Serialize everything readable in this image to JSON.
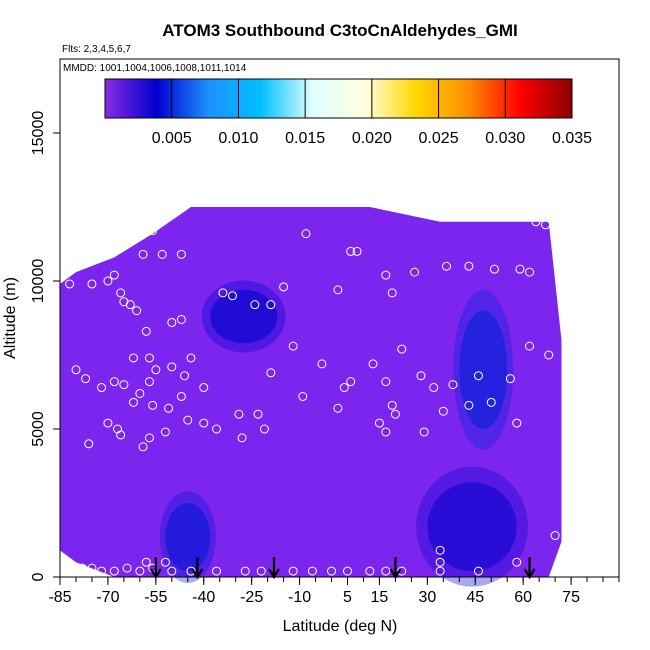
{
  "chart_data": {
    "type": "heatmap",
    "title": "ATOM3 Southbound C3toCnAldehydes_GMI",
    "annotations": [
      "Flts: 2,3,4,5,6,7",
      "MMDD: 1001,1004,1006,1008,1011,1014"
    ],
    "xlabel": "Latitude (deg N)",
    "ylabel": "Altitude (m)",
    "xlim": [
      -85,
      90
    ],
    "ylim": [
      0,
      17500
    ],
    "x_ticks": [
      -85,
      -70,
      -55,
      -40,
      -25,
      -10,
      5,
      15,
      30,
      45,
      60,
      75
    ],
    "y_ticks": [
      0,
      5000,
      10000,
      15000
    ],
    "colorbar": {
      "range": [
        0,
        0.035
      ],
      "ticks": [
        "0.005",
        "0.010",
        "0.015",
        "0.020",
        "0.025",
        "0.030",
        "0.035"
      ],
      "colors": [
        "#8a2be2",
        "#0000cd",
        "#1e90ff",
        "#00bfff",
        "#e0ffff",
        "#ffffe0",
        "#ffd700",
        "#ff8c00",
        "#ff0000",
        "#8b0000"
      ]
    },
    "field": {
      "background_color": "#7b25ef",
      "extent": {
        "columns": [
          {
            "lat": -85,
            "alt_min": 900,
            "alt_max": 9900
          },
          {
            "lat": -80,
            "alt_min": 500,
            "alt_max": 10300
          },
          {
            "lat": -68,
            "alt_min": 0,
            "alt_max": 10800
          },
          {
            "lat": -56,
            "alt_min": 0,
            "alt_max": 11600
          },
          {
            "lat": -44,
            "alt_min": 0,
            "alt_max": 12500
          },
          {
            "lat": 12,
            "alt_min": 0,
            "alt_max": 12500
          },
          {
            "lat": 34,
            "alt_min": 0,
            "alt_max": 12000
          },
          {
            "lat": 68,
            "alt_min": 0,
            "alt_max": 12000
          },
          {
            "lat": 72,
            "alt_min": 1200,
            "alt_max": 8000
          }
        ]
      },
      "low_regions": [
        {
          "lat_range": [
            -38,
            -17
          ],
          "alt_range": [
            7900,
            9700
          ],
          "value": 0.004
        },
        {
          "lat_range": [
            30,
            58
          ],
          "alt_range": [
            200,
            3200
          ],
          "value": 0.0035
        },
        {
          "lat_range": [
            -52,
            -38
          ],
          "alt_range": [
            200,
            2500
          ],
          "value": 0.0045
        },
        {
          "lat_range": [
            40,
            55
          ],
          "alt_range": [
            5000,
            9000
          ],
          "value": 0.0048
        }
      ]
    },
    "samples": [
      {
        "lat": -82,
        "alt": 9900
      },
      {
        "lat": -75,
        "alt": 9900
      },
      {
        "lat": -70,
        "alt": 10000
      },
      {
        "lat": -68,
        "alt": 10200
      },
      {
        "lat": -66,
        "alt": 9600
      },
      {
        "lat": -63,
        "alt": 9200
      },
      {
        "lat": -61,
        "alt": 9000
      },
      {
        "lat": -65,
        "alt": 9300
      },
      {
        "lat": -59,
        "alt": 10900
      },
      {
        "lat": -56,
        "alt": 11700
      },
      {
        "lat": -50,
        "alt": 12300
      },
      {
        "lat": -53,
        "alt": 10900
      },
      {
        "lat": -47,
        "alt": 10900
      },
      {
        "lat": -50,
        "alt": 8600
      },
      {
        "lat": -47,
        "alt": 8700
      },
      {
        "lat": -58,
        "alt": 8300
      },
      {
        "lat": -62,
        "alt": 7400
      },
      {
        "lat": -57,
        "alt": 7400
      },
      {
        "lat": -55,
        "alt": 7000
      },
      {
        "lat": -50,
        "alt": 7100
      },
      {
        "lat": -44,
        "alt": 7400
      },
      {
        "lat": -46,
        "alt": 6800
      },
      {
        "lat": -60,
        "alt": 6200
      },
      {
        "lat": -57,
        "alt": 6600
      },
      {
        "lat": -65,
        "alt": 6500
      },
      {
        "lat": -68,
        "alt": 6600
      },
      {
        "lat": -72,
        "alt": 6400
      },
      {
        "lat": -77,
        "alt": 6700
      },
      {
        "lat": -80,
        "alt": 7000
      },
      {
        "lat": -62,
        "alt": 5900
      },
      {
        "lat": -56,
        "alt": 5800
      },
      {
        "lat": -51,
        "alt": 5700
      },
      {
        "lat": -47,
        "alt": 6100
      },
      {
        "lat": -40,
        "alt": 6400
      },
      {
        "lat": -45,
        "alt": 5300
      },
      {
        "lat": -52,
        "alt": 4900
      },
      {
        "lat": -57,
        "alt": 4700
      },
      {
        "lat": -59,
        "alt": 4400
      },
      {
        "lat": -67,
        "alt": 5000
      },
      {
        "lat": -70,
        "alt": 5200
      },
      {
        "lat": -66,
        "alt": 4800
      },
      {
        "lat": -76,
        "alt": 4500
      },
      {
        "lat": -36,
        "alt": 5000
      },
      {
        "lat": -40,
        "alt": 5200
      },
      {
        "lat": -29,
        "alt": 5500
      },
      {
        "lat": -23,
        "alt": 5500
      },
      {
        "lat": -21,
        "alt": 5000
      },
      {
        "lat": -28,
        "alt": 4700
      },
      {
        "lat": -19,
        "alt": 6900
      },
      {
        "lat": -34,
        "alt": 9600
      },
      {
        "lat": -31,
        "alt": 9500
      },
      {
        "lat": -24,
        "alt": 9200
      },
      {
        "lat": -19,
        "alt": 9200
      },
      {
        "lat": -15,
        "alt": 9800
      },
      {
        "lat": -12,
        "alt": 7800
      },
      {
        "lat": -9,
        "alt": 6100
      },
      {
        "lat": -3,
        "alt": 7200
      },
      {
        "lat": 2,
        "alt": 5700
      },
      {
        "lat": 4,
        "alt": 6400
      },
      {
        "lat": 6,
        "alt": 6600
      },
      {
        "lat": 2,
        "alt": 9700
      },
      {
        "lat": -8,
        "alt": 11600
      },
      {
        "lat": 6,
        "alt": 11000
      },
      {
        "lat": 8,
        "alt": 11000
      },
      {
        "lat": 17,
        "alt": 10200
      },
      {
        "lat": 19,
        "alt": 9600
      },
      {
        "lat": 22,
        "alt": 7700
      },
      {
        "lat": 13,
        "alt": 7200
      },
      {
        "lat": 17,
        "alt": 6600
      },
      {
        "lat": 19,
        "alt": 5800
      },
      {
        "lat": 20,
        "alt": 5500
      },
      {
        "lat": 15,
        "alt": 5200
      },
      {
        "lat": 17,
        "alt": 4900
      },
      {
        "lat": 28,
        "alt": 6800
      },
      {
        "lat": 32,
        "alt": 6400
      },
      {
        "lat": 29,
        "alt": 4900
      },
      {
        "lat": 35,
        "alt": 5600
      },
      {
        "lat": 38,
        "alt": 6500
      },
      {
        "lat": 43,
        "alt": 5800
      },
      {
        "lat": 46,
        "alt": 6800
      },
      {
        "lat": 50,
        "alt": 5900
      },
      {
        "lat": 56,
        "alt": 6700
      },
      {
        "lat": 58,
        "alt": 5200
      },
      {
        "lat": 62,
        "alt": 7800
      },
      {
        "lat": 68,
        "alt": 7500
      },
      {
        "lat": 26,
        "alt": 10300
      },
      {
        "lat": 36,
        "alt": 10500
      },
      {
        "lat": 43,
        "alt": 10500
      },
      {
        "lat": 51,
        "alt": 10400
      },
      {
        "lat": 59,
        "alt": 10400
      },
      {
        "lat": 62,
        "alt": 10300
      },
      {
        "lat": 67,
        "alt": 11900
      },
      {
        "lat": 64,
        "alt": 12000
      },
      {
        "lat": 70,
        "alt": 1400
      },
      {
        "lat": 58,
        "alt": 500
      },
      {
        "lat": 46,
        "alt": 200
      },
      {
        "lat": 34,
        "alt": 200
      },
      {
        "lat": 34,
        "alt": 900
      },
      {
        "lat": 34,
        "alt": 500
      },
      {
        "lat": 22,
        "alt": 200
      },
      {
        "lat": 17,
        "alt": 200
      },
      {
        "lat": 12,
        "alt": 200
      },
      {
        "lat": 5,
        "alt": 200
      },
      {
        "lat": 0,
        "alt": 200
      },
      {
        "lat": -6,
        "alt": 200
      },
      {
        "lat": -12,
        "alt": 200
      },
      {
        "lat": -22,
        "alt": 200
      },
      {
        "lat": -27,
        "alt": 200
      },
      {
        "lat": -36,
        "alt": 200
      },
      {
        "lat": -44,
        "alt": 200
      },
      {
        "lat": -50,
        "alt": 200
      },
      {
        "lat": -56,
        "alt": 300
      },
      {
        "lat": -60,
        "alt": 200
      },
      {
        "lat": -64,
        "alt": 300
      },
      {
        "lat": -68,
        "alt": 200
      },
      {
        "lat": -72,
        "alt": 200
      },
      {
        "lat": -75,
        "alt": 300
      },
      {
        "lat": -58,
        "alt": 500
      },
      {
        "lat": -52,
        "alt": 500
      },
      {
        "lat": -78,
        "alt": 300
      }
    ],
    "flight_marker_arrows": [
      -55,
      -42,
      -18,
      20,
      62
    ]
  }
}
